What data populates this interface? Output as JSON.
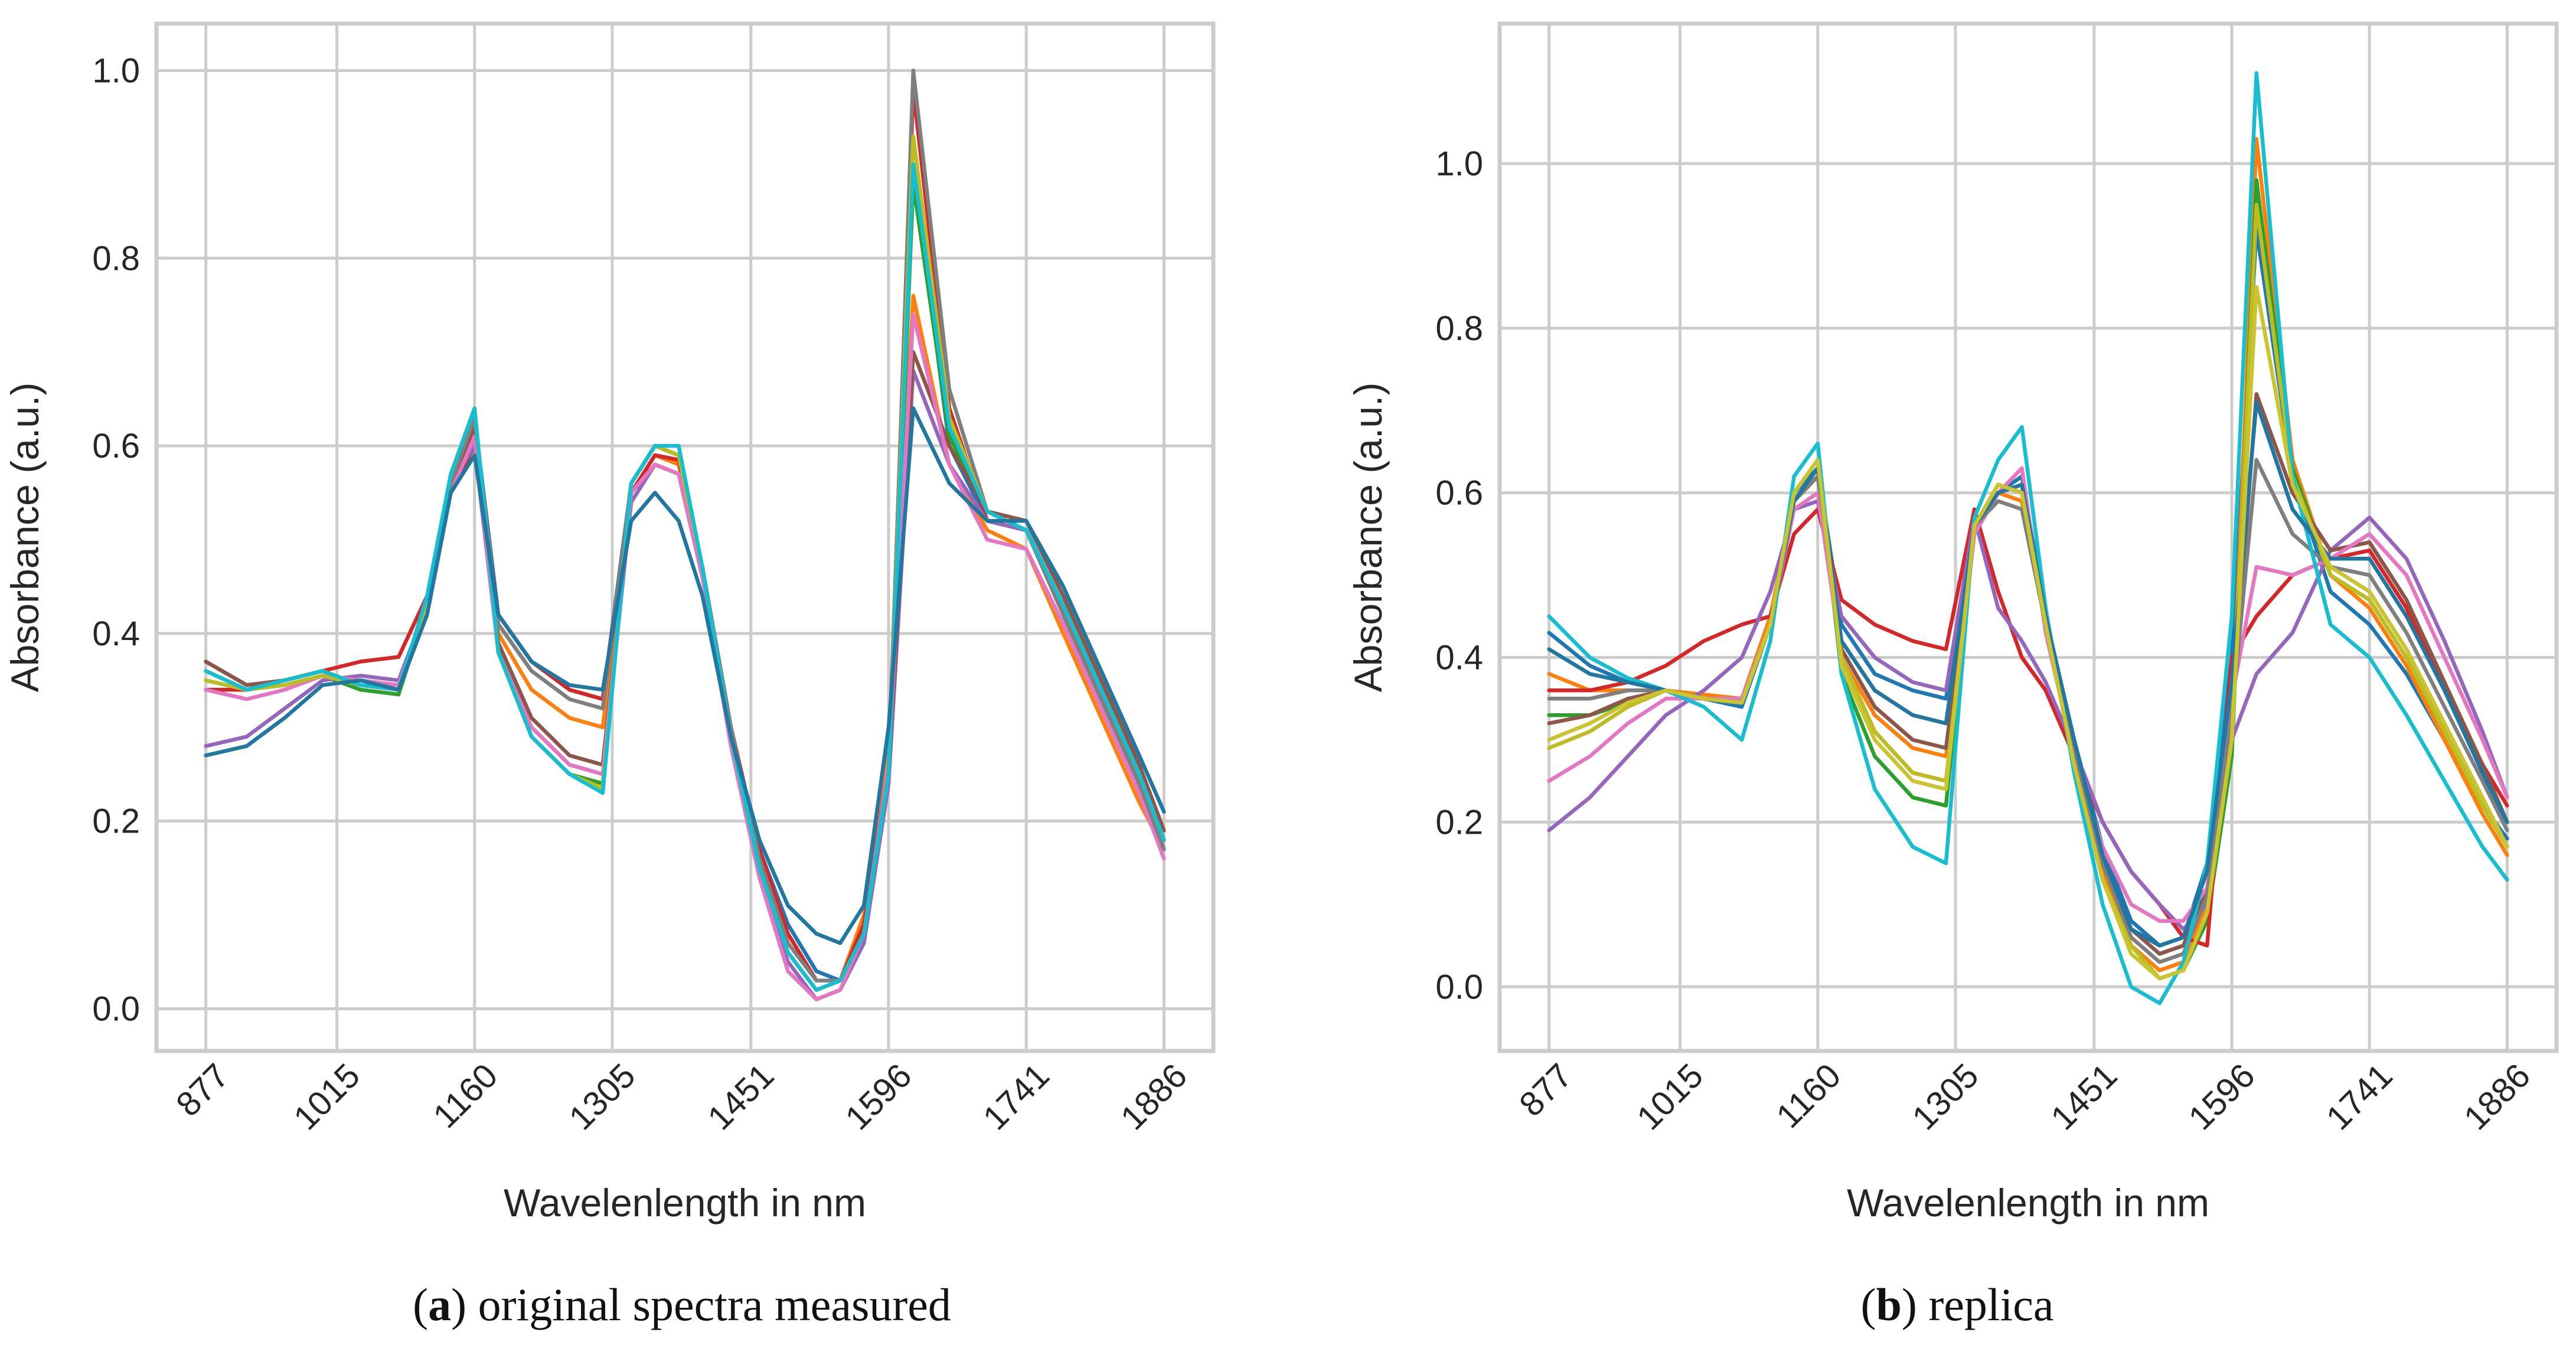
{
  "figure": {
    "captions": [
      {
        "letter": "a",
        "text": "original spectra measured"
      },
      {
        "letter": "b",
        "text": "replica"
      }
    ]
  },
  "chart_data": [
    {
      "type": "line",
      "panel": "a",
      "title": "",
      "xlabel": "Wavelenlength in nm",
      "ylabel": "Absorbance (a.u.)",
      "xticks": [
        877,
        1015,
        1160,
        1305,
        1451,
        1596,
        1741,
        1886
      ],
      "yticks": [
        "0.0",
        "0.2",
        "0.4",
        "0.6",
        "0.8",
        "1.0"
      ],
      "xlim": [
        825,
        1938
      ],
      "ylim": [
        -0.045,
        1.05
      ],
      "grid": true,
      "legend": "none",
      "x": [
        877,
        920,
        960,
        1000,
        1040,
        1080,
        1110,
        1135,
        1160,
        1185,
        1220,
        1260,
        1295,
        1325,
        1350,
        1375,
        1400,
        1430,
        1460,
        1490,
        1520,
        1545,
        1570,
        1596,
        1622,
        1660,
        1700,
        1741,
        1780,
        1820,
        1860,
        1886
      ],
      "series": [
        {
          "name": "s1",
          "color": "#1f77b4",
          "values": [
            0.37,
            0.345,
            0.35,
            0.36,
            0.345,
            0.34,
            0.43,
            0.56,
            0.63,
            0.42,
            0.37,
            0.34,
            0.33,
            0.56,
            0.6,
            0.59,
            0.47,
            0.3,
            0.17,
            0.09,
            0.04,
            0.03,
            0.08,
            0.25,
            0.9,
            0.6,
            0.52,
            0.51,
            0.42,
            0.33,
            0.24,
            0.18
          ]
        },
        {
          "name": "s2",
          "color": "#ff7f0e",
          "values": [
            0.36,
            0.34,
            0.35,
            0.36,
            0.345,
            0.34,
            0.43,
            0.55,
            0.61,
            0.4,
            0.34,
            0.31,
            0.3,
            0.55,
            0.59,
            0.58,
            0.47,
            0.3,
            0.17,
            0.08,
            0.03,
            0.03,
            0.1,
            0.28,
            0.76,
            0.58,
            0.51,
            0.49,
            0.4,
            0.31,
            0.22,
            0.17
          ]
        },
        {
          "name": "s3",
          "color": "#2ca02c",
          "values": [
            0.35,
            0.34,
            0.345,
            0.355,
            0.34,
            0.335,
            0.43,
            0.56,
            0.62,
            0.38,
            0.29,
            0.25,
            0.24,
            0.56,
            0.6,
            0.59,
            0.47,
            0.29,
            0.15,
            0.06,
            0.02,
            0.03,
            0.07,
            0.24,
            0.88,
            0.61,
            0.53,
            0.51,
            0.43,
            0.34,
            0.25,
            0.18
          ]
        },
        {
          "name": "s4",
          "color": "#d62728",
          "values": [
            0.34,
            0.34,
            0.35,
            0.36,
            0.37,
            0.375,
            0.44,
            0.55,
            0.6,
            0.42,
            0.37,
            0.34,
            0.33,
            0.55,
            0.59,
            0.585,
            0.47,
            0.3,
            0.17,
            0.08,
            0.03,
            0.03,
            0.09,
            0.26,
            0.98,
            0.64,
            0.52,
            0.51,
            0.43,
            0.34,
            0.25,
            0.19
          ]
        },
        {
          "name": "s5",
          "color": "#9467bd",
          "values": [
            0.28,
            0.29,
            0.32,
            0.35,
            0.355,
            0.35,
            0.43,
            0.56,
            0.6,
            0.38,
            0.3,
            0.26,
            0.25,
            0.54,
            0.58,
            0.57,
            0.46,
            0.28,
            0.14,
            0.05,
            0.01,
            0.02,
            0.07,
            0.24,
            0.68,
            0.58,
            0.52,
            0.51,
            0.43,
            0.34,
            0.25,
            0.17
          ]
        },
        {
          "name": "s6",
          "color": "#8c564b",
          "values": [
            0.37,
            0.345,
            0.35,
            0.36,
            0.345,
            0.34,
            0.43,
            0.56,
            0.62,
            0.39,
            0.31,
            0.27,
            0.26,
            0.55,
            0.58,
            0.57,
            0.46,
            0.29,
            0.15,
            0.06,
            0.02,
            0.03,
            0.08,
            0.25,
            0.7,
            0.6,
            0.53,
            0.52,
            0.44,
            0.35,
            0.26,
            0.19
          ]
        },
        {
          "name": "s7",
          "color": "#e377c2",
          "values": [
            0.34,
            0.33,
            0.34,
            0.355,
            0.35,
            0.345,
            0.43,
            0.55,
            0.61,
            0.38,
            0.3,
            0.26,
            0.25,
            0.55,
            0.58,
            0.57,
            0.46,
            0.28,
            0.14,
            0.04,
            0.01,
            0.02,
            0.08,
            0.26,
            0.74,
            0.58,
            0.5,
            0.49,
            0.41,
            0.32,
            0.23,
            0.16
          ]
        },
        {
          "name": "s8",
          "color": "#7f7f7f",
          "values": [
            0.36,
            0.34,
            0.35,
            0.36,
            0.345,
            0.34,
            0.43,
            0.56,
            0.63,
            0.41,
            0.36,
            0.33,
            0.32,
            0.56,
            0.6,
            0.59,
            0.47,
            0.3,
            0.16,
            0.07,
            0.03,
            0.03,
            0.08,
            0.25,
            1.0,
            0.66,
            0.53,
            0.51,
            0.42,
            0.33,
            0.24,
            0.17
          ]
        },
        {
          "name": "s9",
          "color": "#bcbd22",
          "values": [
            0.35,
            0.34,
            0.345,
            0.355,
            0.345,
            0.34,
            0.43,
            0.57,
            0.64,
            0.38,
            0.29,
            0.25,
            0.235,
            0.56,
            0.6,
            0.59,
            0.47,
            0.29,
            0.15,
            0.06,
            0.02,
            0.03,
            0.08,
            0.25,
            0.93,
            0.63,
            0.53,
            0.51,
            0.43,
            0.34,
            0.25,
            0.18
          ]
        },
        {
          "name": "s10",
          "color": "#17becf",
          "values": [
            0.36,
            0.34,
            0.35,
            0.36,
            0.345,
            0.34,
            0.44,
            0.57,
            0.64,
            0.38,
            0.29,
            0.25,
            0.23,
            0.56,
            0.6,
            0.6,
            0.47,
            0.29,
            0.15,
            0.06,
            0.02,
            0.03,
            0.08,
            0.25,
            0.9,
            0.62,
            0.53,
            0.51,
            0.43,
            0.34,
            0.25,
            0.18
          ]
        },
        {
          "name": "s11",
          "color": "#2277a0",
          "values": [
            0.27,
            0.28,
            0.31,
            0.345,
            0.35,
            0.34,
            0.42,
            0.55,
            0.59,
            0.42,
            0.37,
            0.345,
            0.34,
            0.52,
            0.55,
            0.52,
            0.44,
            0.29,
            0.18,
            0.11,
            0.08,
            0.07,
            0.11,
            0.3,
            0.64,
            0.56,
            0.52,
            0.52,
            0.45,
            0.36,
            0.27,
            0.21
          ]
        }
      ]
    },
    {
      "type": "line",
      "panel": "b",
      "title": "",
      "xlabel": "Wavelenlength in nm",
      "ylabel": "Absorbance (a.u.)",
      "xticks": [
        877,
        1015,
        1160,
        1305,
        1451,
        1596,
        1741,
        1886
      ],
      "yticks": [
        "0.0",
        "0.2",
        "0.4",
        "0.6",
        "0.8",
        "1.0"
      ],
      "xlim": [
        825,
        1938
      ],
      "ylim": [
        -0.078,
        1.17
      ],
      "grid": true,
      "legend": "none",
      "x": [
        877,
        920,
        960,
        1000,
        1040,
        1080,
        1110,
        1135,
        1160,
        1185,
        1220,
        1260,
        1295,
        1325,
        1350,
        1375,
        1400,
        1430,
        1460,
        1490,
        1520,
        1545,
        1570,
        1596,
        1622,
        1660,
        1700,
        1741,
        1780,
        1820,
        1860,
        1886
      ],
      "series": [
        {
          "name": "r1",
          "color": "#1f77b4",
          "values": [
            0.43,
            0.39,
            0.37,
            0.36,
            0.35,
            0.34,
            0.44,
            0.6,
            0.63,
            0.44,
            0.38,
            0.36,
            0.35,
            0.56,
            0.6,
            0.62,
            0.45,
            0.3,
            0.17,
            0.08,
            0.05,
            0.06,
            0.15,
            0.4,
            0.92,
            0.62,
            0.48,
            0.44,
            0.38,
            0.3,
            0.22,
            0.18
          ]
        },
        {
          "name": "r2",
          "color": "#ff7f0e",
          "values": [
            0.38,
            0.36,
            0.36,
            0.36,
            0.355,
            0.35,
            0.45,
            0.59,
            0.62,
            0.4,
            0.33,
            0.29,
            0.28,
            0.56,
            0.6,
            0.59,
            0.44,
            0.28,
            0.14,
            0.05,
            0.02,
            0.03,
            0.1,
            0.3,
            1.03,
            0.64,
            0.5,
            0.46,
            0.39,
            0.3,
            0.21,
            0.16
          ]
        },
        {
          "name": "r3",
          "color": "#2ca02c",
          "values": [
            0.33,
            0.33,
            0.345,
            0.36,
            0.35,
            0.345,
            0.44,
            0.6,
            0.64,
            0.38,
            0.28,
            0.23,
            0.22,
            0.56,
            0.61,
            0.6,
            0.44,
            0.27,
            0.13,
            0.05,
            0.01,
            0.02,
            0.08,
            0.28,
            0.98,
            0.63,
            0.5,
            0.47,
            0.4,
            0.31,
            0.22,
            0.17
          ]
        },
        {
          "name": "r4",
          "color": "#d62728",
          "values": [
            0.36,
            0.36,
            0.37,
            0.39,
            0.42,
            0.44,
            0.45,
            0.55,
            0.58,
            0.47,
            0.44,
            0.42,
            0.41,
            0.58,
            0.48,
            0.4,
            0.36,
            0.28,
            0.2,
            0.14,
            0.1,
            0.06,
            0.05,
            0.4,
            0.45,
            0.5,
            0.52,
            0.53,
            0.46,
            0.36,
            0.27,
            0.22
          ]
        },
        {
          "name": "r5",
          "color": "#9467bd",
          "values": [
            0.19,
            0.23,
            0.28,
            0.33,
            0.36,
            0.4,
            0.48,
            0.58,
            0.59,
            0.45,
            0.4,
            0.37,
            0.36,
            0.57,
            0.46,
            0.42,
            0.37,
            0.29,
            0.2,
            0.14,
            0.1,
            0.07,
            0.1,
            0.3,
            0.38,
            0.43,
            0.53,
            0.57,
            0.52,
            0.42,
            0.31,
            0.23
          ]
        },
        {
          "name": "r6",
          "color": "#8c564b",
          "values": [
            0.32,
            0.33,
            0.35,
            0.36,
            0.35,
            0.345,
            0.44,
            0.59,
            0.62,
            0.41,
            0.34,
            0.3,
            0.29,
            0.55,
            0.6,
            0.61,
            0.44,
            0.28,
            0.15,
            0.07,
            0.04,
            0.05,
            0.12,
            0.33,
            0.72,
            0.6,
            0.53,
            0.54,
            0.47,
            0.37,
            0.27,
            0.2
          ]
        },
        {
          "name": "r7",
          "color": "#e377c2",
          "values": [
            0.25,
            0.28,
            0.32,
            0.35,
            0.35,
            0.35,
            0.44,
            0.58,
            0.6,
            0.4,
            0.31,
            0.26,
            0.25,
            0.55,
            0.6,
            0.63,
            0.43,
            0.28,
            0.17,
            0.1,
            0.08,
            0.08,
            0.12,
            0.35,
            0.51,
            0.5,
            0.52,
            0.55,
            0.5,
            0.4,
            0.3,
            0.23
          ]
        },
        {
          "name": "r8",
          "color": "#7f7f7f",
          "values": [
            0.35,
            0.35,
            0.36,
            0.36,
            0.35,
            0.345,
            0.44,
            0.59,
            0.62,
            0.42,
            0.36,
            0.33,
            0.32,
            0.56,
            0.59,
            0.58,
            0.44,
            0.28,
            0.15,
            0.06,
            0.03,
            0.04,
            0.11,
            0.33,
            0.64,
            0.55,
            0.51,
            0.5,
            0.43,
            0.34,
            0.25,
            0.19
          ]
        },
        {
          "name": "r9",
          "color": "#bcbd22",
          "values": [
            0.29,
            0.31,
            0.34,
            0.36,
            0.35,
            0.345,
            0.44,
            0.59,
            0.63,
            0.4,
            0.31,
            0.26,
            0.25,
            0.56,
            0.61,
            0.6,
            0.44,
            0.27,
            0.13,
            0.05,
            0.01,
            0.02,
            0.09,
            0.3,
            0.95,
            0.62,
            0.5,
            0.47,
            0.4,
            0.31,
            0.22,
            0.17
          ]
        },
        {
          "name": "r10",
          "color": "#17becf",
          "values": [
            0.45,
            0.4,
            0.375,
            0.36,
            0.34,
            0.3,
            0.42,
            0.62,
            0.66,
            0.38,
            0.24,
            0.17,
            0.15,
            0.57,
            0.64,
            0.68,
            0.46,
            0.26,
            0.1,
            0.0,
            -0.02,
            0.03,
            0.15,
            0.45,
            1.11,
            0.62,
            0.44,
            0.4,
            0.33,
            0.25,
            0.17,
            0.13
          ]
        },
        {
          "name": "r11",
          "color": "#2277a0",
          "values": [
            0.41,
            0.38,
            0.37,
            0.36,
            0.35,
            0.345,
            0.44,
            0.59,
            0.63,
            0.42,
            0.36,
            0.33,
            0.32,
            0.56,
            0.6,
            0.61,
            0.45,
            0.3,
            0.16,
            0.07,
            0.05,
            0.06,
            0.14,
            0.37,
            0.71,
            0.58,
            0.52,
            0.52,
            0.45,
            0.36,
            0.26,
            0.2
          ]
        },
        {
          "name": "r12",
          "color": "#c9c430",
          "values": [
            0.3,
            0.32,
            0.345,
            0.36,
            0.35,
            0.345,
            0.44,
            0.6,
            0.64,
            0.39,
            0.3,
            0.25,
            0.24,
            0.56,
            0.61,
            0.6,
            0.44,
            0.27,
            0.13,
            0.04,
            0.01,
            0.02,
            0.09,
            0.3,
            0.85,
            0.61,
            0.51,
            0.48,
            0.41,
            0.32,
            0.23,
            0.17
          ]
        }
      ]
    }
  ]
}
